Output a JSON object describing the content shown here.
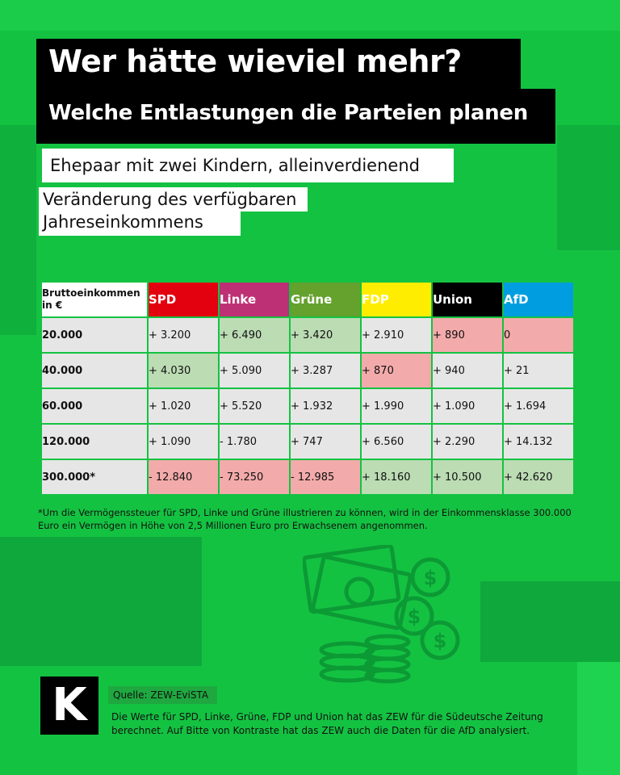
{
  "header": {
    "title": "Wer hätte wieviel mehr?",
    "subtitle": "Welche Entlastungen die Parteien planen"
  },
  "tags": {
    "household": "Ehepaar mit zwei Kindern, alleinverdienend",
    "measure_line1": "Veränderung des verfügbaren",
    "measure_line2": "Jahreseinkommens"
  },
  "table": {
    "corner_header": "Bruttoeinkommen in €",
    "parties": [
      {
        "name": "SPD",
        "color": "#e3000f"
      },
      {
        "name": "Linke",
        "color": "#be3075"
      },
      {
        "name": "Grüne",
        "color": "#64a12d"
      },
      {
        "name": "FDP",
        "color": "#ffed00"
      },
      {
        "name": "Union",
        "color": "#000000"
      },
      {
        "name": "AfD",
        "color": "#009ee0"
      }
    ],
    "rows": [
      {
        "income": "20.000",
        "values": [
          "+ 3.200",
          "+ 6.490",
          "+ 3.420",
          "+ 2.910",
          "+ 890",
          "0"
        ],
        "shading": [
          "neutral",
          "green",
          "green",
          "neutral",
          "red",
          "red"
        ]
      },
      {
        "income": "40.000",
        "values": [
          "+ 4.030",
          "+ 5.090",
          "+ 3.287",
          "+ 870",
          "+ 940",
          "+ 21"
        ],
        "shading": [
          "green",
          "neutral",
          "neutral",
          "red",
          "neutral",
          "neutral"
        ]
      },
      {
        "income": "60.000",
        "values": [
          "+ 1.020",
          "+ 5.520",
          "+ 1.932",
          "+ 1.990",
          "+ 1.090",
          "+ 1.694"
        ],
        "shading": [
          "neutral",
          "neutral",
          "neutral",
          "neutral",
          "neutral",
          "neutral"
        ]
      },
      {
        "income": "120.000",
        "values": [
          "+ 1.090",
          "- 1.780",
          "+ 747",
          "+ 6.560",
          "+ 2.290",
          "+ 14.132"
        ],
        "shading": [
          "neutral",
          "neutral",
          "neutral",
          "neutral",
          "neutral",
          "neutral"
        ]
      },
      {
        "income": "300.000*",
        "values": [
          "- 12.840",
          "- 73.250",
          "- 12.985",
          "+ 18.160",
          "+ 10.500",
          "+ 42.620"
        ],
        "shading": [
          "red",
          "red",
          "red",
          "green",
          "green",
          "green"
        ]
      }
    ]
  },
  "footnote": "*Um die Vermögenssteuer für SPD, Linke und Grüne illustrieren zu können, wird in der Einkommensklasse 300.000 Euro ein Vermögen in Höhe von 2,5 Millionen Euro pro Erwachsenem angenommen.",
  "footer": {
    "logo_letter": "K",
    "source_label": "Quelle: ZEW-EviSTA",
    "source_text": "Die Werte für SPD, Linke, Grüne, FDP und Union hat das ZEW für die Südeutsche Zeitung berechnet. Auf Bitte von Kontraste hat das ZEW auch die Daten für die AfD analysiert."
  },
  "colors": {
    "background": "#14c242",
    "background_dark": "#0fa23a",
    "background_light": "#1ed34f"
  }
}
